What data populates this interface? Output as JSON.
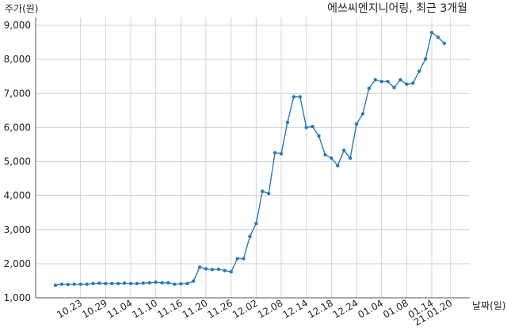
{
  "chart_data": {
    "type": "line",
    "title": "에쓰씨엔지니어링, 최근 3개월",
    "ylabel": "주가(원)",
    "xlabel": "날짜(일)",
    "ylim": [
      1000,
      9000
    ],
    "yticks": [
      1000,
      2000,
      3000,
      4000,
      5000,
      6000,
      7000,
      8000,
      9000
    ],
    "ytick_labels": [
      "1,000",
      "2,000",
      "3,000",
      "4,000",
      "5,000",
      "6,000",
      "7,000",
      "8,000",
      "9,000"
    ],
    "xticks": [
      {
        "index": 4,
        "label": "10.23"
      },
      {
        "index": 8,
        "label": "10.29"
      },
      {
        "index": 12,
        "label": "11.04"
      },
      {
        "index": 16,
        "label": "11.10"
      },
      {
        "index": 20,
        "label": "11.16"
      },
      {
        "index": 24,
        "label": "11.20"
      },
      {
        "index": 28,
        "label": "11.26"
      },
      {
        "index": 32,
        "label": "12.02"
      },
      {
        "index": 36,
        "label": "12.08"
      },
      {
        "index": 40,
        "label": "12.14"
      },
      {
        "index": 44,
        "label": "12.18"
      },
      {
        "index": 48,
        "label": "12.24"
      },
      {
        "index": 52,
        "label": "01.04"
      },
      {
        "index": 56,
        "label": "01.08"
      },
      {
        "index": 60,
        "label": "01.14"
      },
      {
        "index": 63,
        "label": "21.01.20"
      }
    ],
    "grid": true,
    "series": [
      {
        "color": "#2b7bb9",
        "values": [
          1370,
          1400,
          1390,
          1400,
          1400,
          1400,
          1420,
          1430,
          1420,
          1420,
          1420,
          1430,
          1420,
          1420,
          1430,
          1440,
          1460,
          1440,
          1440,
          1400,
          1410,
          1420,
          1490,
          1900,
          1850,
          1830,
          1840,
          1800,
          1760,
          2150,
          2150,
          2800,
          3180,
          4130,
          4060,
          5260,
          5230,
          6150,
          6900,
          6900,
          6000,
          6030,
          5750,
          5200,
          5100,
          4880,
          5330,
          5100,
          6100,
          6400,
          7150,
          7400,
          7350,
          7350,
          7170,
          7400,
          7270,
          7300,
          7650,
          8010,
          8790,
          8650,
          8470
        ]
      }
    ]
  }
}
